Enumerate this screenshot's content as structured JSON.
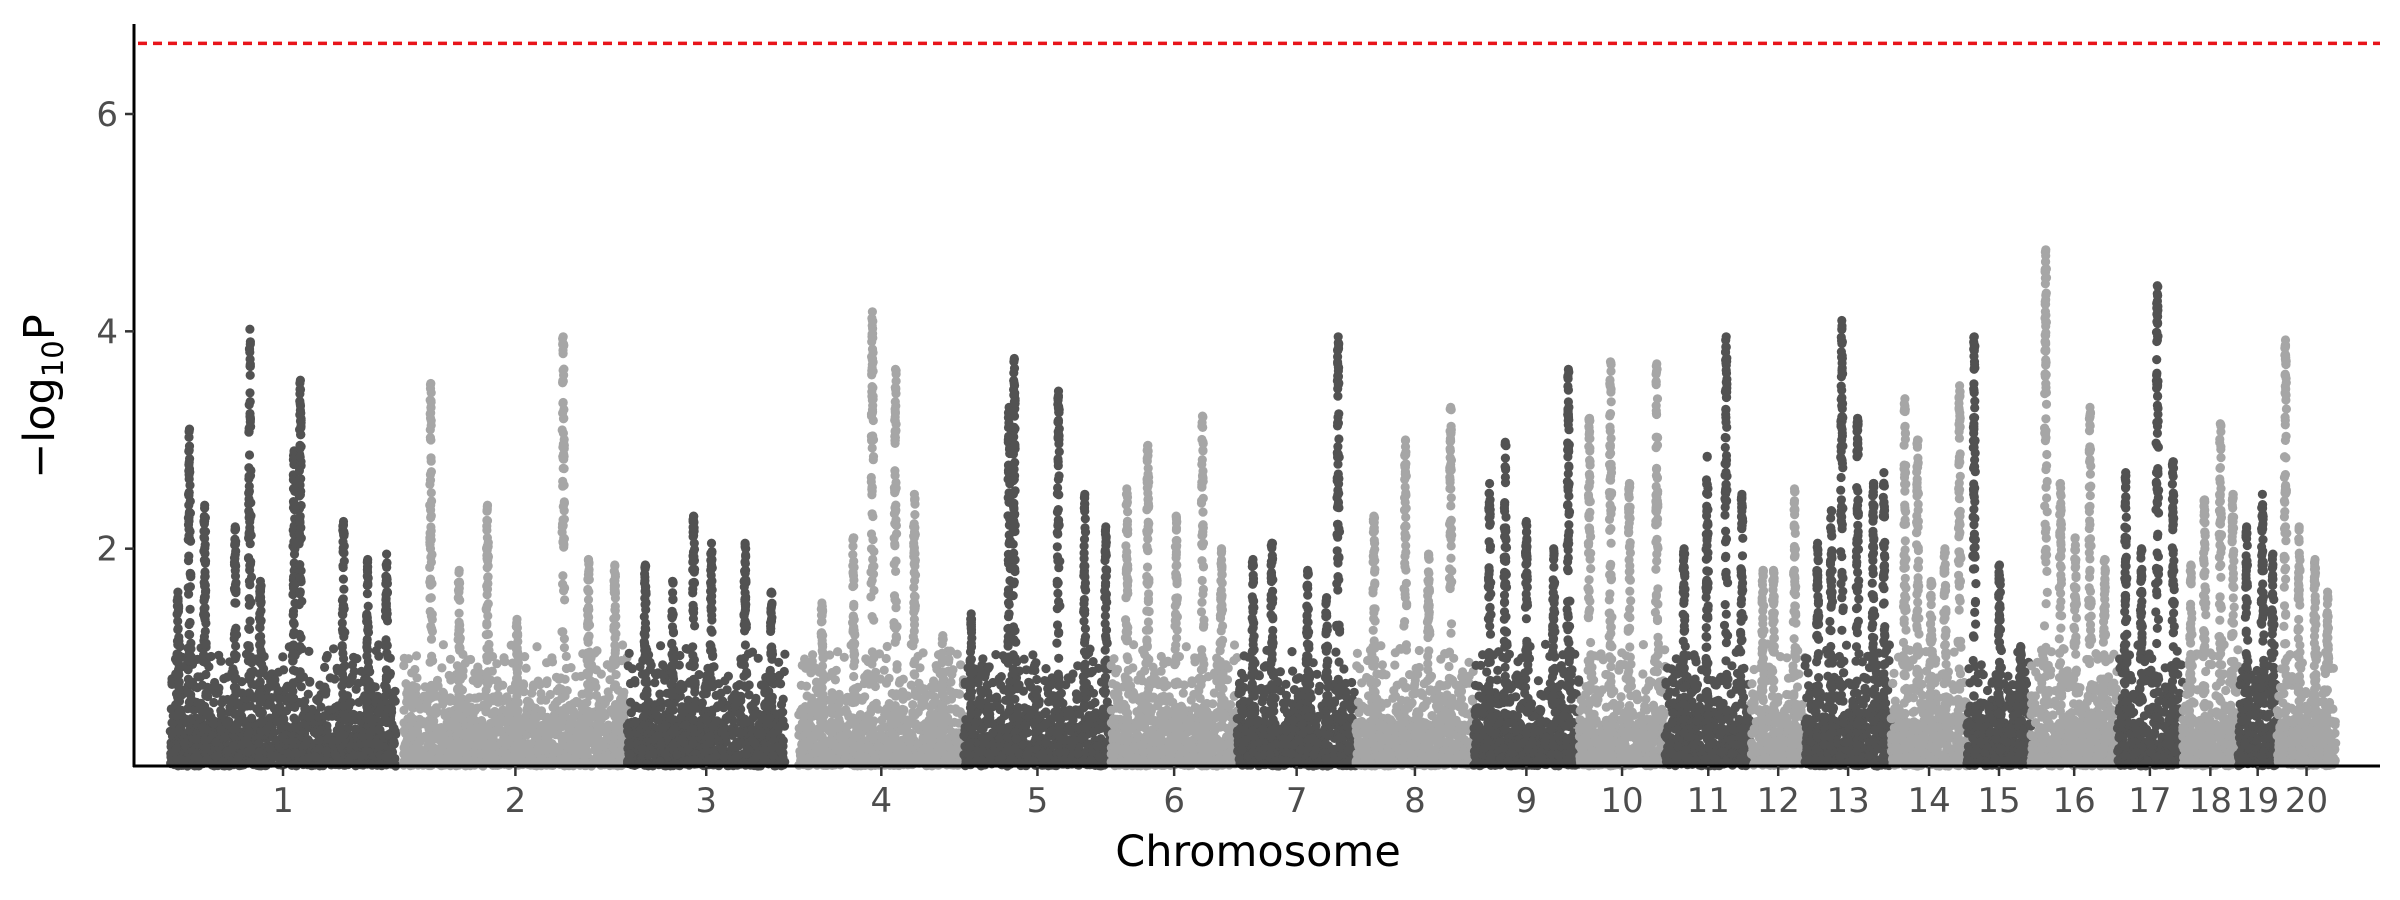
{
  "chart_data": {
    "type": "scatter",
    "subtype": "manhattan",
    "title": "",
    "xlabel": "Chromosome",
    "ylabel": "−log",
    "ylabel_subscript": "10",
    "ylabel_suffix": "P",
    "ylim": [
      0,
      6.8
    ],
    "yticks": [
      2,
      4,
      6
    ],
    "grid": false,
    "legend": "none",
    "threshold_line": {
      "y": 6.65,
      "color": "#e8141a",
      "style": "dashed"
    },
    "colors": {
      "odd": "#525252",
      "even": "#a6a6a6"
    },
    "chromosomes": [
      {
        "label": "1",
        "start": 0.0,
        "end": 215.0,
        "peaks": [
          [
            7.5,
            1.6
          ],
          [
            18.5,
            3.1
          ],
          [
            33.0,
            2.4
          ],
          [
            62.0,
            2.2
          ],
          [
            76.0,
            4.02
          ],
          [
            86.0,
            1.7
          ],
          [
            118.0,
            2.9
          ],
          [
            124.0,
            3.55
          ],
          [
            165.0,
            2.25
          ],
          [
            188.0,
            1.9
          ],
          [
            206.0,
            1.95
          ]
        ]
      },
      {
        "label": "2",
        "start": 222.0,
        "end": 435.0,
        "peaks": [
          [
            248.0,
            3.52
          ],
          [
            275.0,
            1.8
          ],
          [
            302.0,
            2.4
          ],
          [
            330.0,
            1.35
          ],
          [
            374.0,
            3.95
          ],
          [
            398.0,
            1.9
          ],
          [
            423.0,
            1.85
          ]
        ]
      },
      {
        "label": "3",
        "start": 435.0,
        "end": 585.0,
        "peaks": [
          [
            452.0,
            1.85
          ],
          [
            478.0,
            1.7
          ],
          [
            498.0,
            2.3
          ],
          [
            515.0,
            2.05
          ],
          [
            547.0,
            2.05
          ],
          [
            572.0,
            1.6
          ]
        ]
      },
      {
        "label": "4",
        "start": 598.0,
        "end": 755.0,
        "peaks": [
          [
            620.0,
            1.5
          ],
          [
            650.0,
            2.1
          ],
          [
            668.0,
            4.18
          ],
          [
            690.0,
            3.65
          ],
          [
            708.0,
            2.5
          ],
          [
            735.0,
            1.2
          ]
        ]
      },
      {
        "label": "5",
        "start": 755.0,
        "end": 895.0,
        "peaks": [
          [
            762.0,
            1.4
          ],
          [
            798.0,
            3.3
          ],
          [
            803.0,
            3.75
          ],
          [
            845.0,
            3.45
          ],
          [
            870.0,
            2.5
          ],
          [
            890.0,
            2.2
          ]
        ]
      },
      {
        "label": "6",
        "start": 895.0,
        "end": 1015.0,
        "peaks": [
          [
            910.0,
            2.55
          ],
          [
            930.0,
            2.95
          ],
          [
            957.0,
            2.3
          ],
          [
            982.0,
            3.22
          ],
          [
            1000.0,
            2.0
          ]
        ]
      },
      {
        "label": "7",
        "start": 1015.0,
        "end": 1128.0,
        "peaks": [
          [
            1030.0,
            1.9
          ],
          [
            1048.0,
            2.05
          ],
          [
            1082.0,
            1.8
          ],
          [
            1100.0,
            1.55
          ],
          [
            1111.0,
            3.95
          ]
        ]
      },
      {
        "label": "8",
        "start": 1128.0,
        "end": 1240.0,
        "peaks": [
          [
            1145.0,
            2.3
          ],
          [
            1175.0,
            3.0
          ],
          [
            1197.0,
            1.95
          ],
          [
            1218.0,
            3.3
          ]
        ]
      },
      {
        "label": "9",
        "start": 1240.0,
        "end": 1340.0,
        "peaks": [
          [
            1255.0,
            2.6
          ],
          [
            1270.0,
            2.98
          ],
          [
            1290.0,
            2.25
          ],
          [
            1316.0,
            2.0
          ],
          [
            1330.0,
            3.65
          ]
        ]
      },
      {
        "label": "10",
        "start": 1340.0,
        "end": 1422.0,
        "peaks": [
          [
            1350.0,
            3.2
          ],
          [
            1370.0,
            3.72
          ],
          [
            1388.0,
            2.6
          ],
          [
            1414.0,
            3.7
          ]
        ]
      },
      {
        "label": "11",
        "start": 1422.0,
        "end": 1504.0,
        "peaks": [
          [
            1440.0,
            2.0
          ],
          [
            1462.0,
            2.85
          ],
          [
            1480.0,
            3.95
          ],
          [
            1495.0,
            2.5
          ]
        ]
      },
      {
        "label": "12",
        "start": 1504.0,
        "end": 1555.0,
        "peaks": [
          [
            1515.0,
            1.8
          ],
          [
            1525.0,
            1.8
          ],
          [
            1545.0,
            2.55
          ]
        ]
      },
      {
        "label": "13",
        "start": 1555.0,
        "end": 1637.0,
        "peaks": [
          [
            1567.0,
            2.05
          ],
          [
            1580.0,
            2.35
          ],
          [
            1590.0,
            4.1
          ],
          [
            1605.0,
            3.2
          ],
          [
            1620.0,
            2.6
          ],
          [
            1630.0,
            2.7
          ]
        ]
      },
      {
        "label": "14",
        "start": 1637.0,
        "end": 1709.0,
        "peaks": [
          [
            1650.0,
            3.38
          ],
          [
            1662.0,
            3.0
          ],
          [
            1675.0,
            1.7
          ],
          [
            1688.0,
            2.0
          ],
          [
            1702.0,
            3.5
          ]
        ]
      },
      {
        "label": "15",
        "start": 1709.0,
        "end": 1770.0,
        "peaks": [
          [
            1716.0,
            3.95
          ],
          [
            1740.0,
            1.85
          ],
          [
            1760.0,
            1.1
          ]
        ]
      },
      {
        "label": "16",
        "start": 1770.0,
        "end": 1852.0,
        "peaks": [
          [
            1784.0,
            4.75
          ],
          [
            1798.0,
            2.6
          ],
          [
            1812.0,
            2.1
          ],
          [
            1826.0,
            3.3
          ],
          [
            1840.0,
            1.9
          ]
        ]
      },
      {
        "label": "17",
        "start": 1852.0,
        "end": 1914.0,
        "peaks": [
          [
            1860.0,
            2.7
          ],
          [
            1875.0,
            2.0
          ],
          [
            1890.0,
            4.42
          ],
          [
            1905.0,
            2.8
          ]
        ]
      },
      {
        "label": "18",
        "start": 1914.0,
        "end": 1967.0,
        "peaks": [
          [
            1922.0,
            1.85
          ],
          [
            1935.0,
            2.45
          ],
          [
            1950.0,
            3.15
          ],
          [
            1962.0,
            2.5
          ]
        ]
      },
      {
        "label": "19",
        "start": 1967.0,
        "end": 2004.0,
        "peaks": [
          [
            1975.0,
            2.2
          ],
          [
            1990.0,
            2.5
          ],
          [
            2000.0,
            1.95
          ]
        ]
      },
      {
        "label": "20",
        "start": 2004.0,
        "end": 2060.0,
        "peaks": [
          [
            2012.0,
            3.92
          ],
          [
            2025.0,
            2.2
          ],
          [
            2040.0,
            1.9
          ],
          [
            2052.0,
            1.6
          ]
        ]
      }
    ]
  }
}
